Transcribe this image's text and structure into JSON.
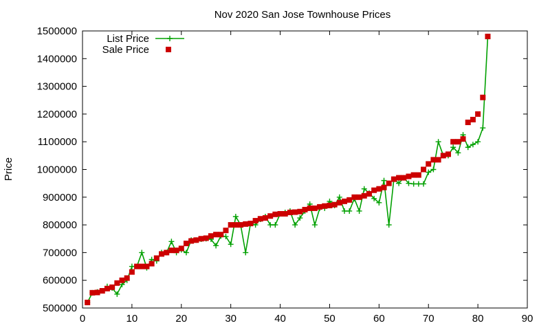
{
  "chart_data": {
    "type": "line",
    "title": "Nov 2020 San Jose Townhouse Prices",
    "xlabel": "",
    "ylabel": "Price",
    "xlim": [
      0,
      90
    ],
    "ylim": [
      500000,
      1500000
    ],
    "x_ticks": [
      "0",
      "10",
      "20",
      "30",
      "40",
      "50",
      "60",
      "70",
      "80",
      "90"
    ],
    "y_ticks": [
      "500000",
      "600000",
      "700000",
      "800000",
      "900000",
      "1000000",
      "1100000",
      "1200000",
      "1300000",
      "1400000",
      "1500000"
    ],
    "grid": false,
    "legend_position": "top-left",
    "series": [
      {
        "name": "List Price",
        "color": "#00a000",
        "marker": "plus",
        "x": [
          1,
          2,
          3,
          4,
          5,
          6,
          7,
          8,
          9,
          10,
          11,
          12,
          13,
          14,
          15,
          16,
          17,
          18,
          19,
          20,
          21,
          22,
          23,
          24,
          25,
          26,
          27,
          28,
          29,
          30,
          31,
          32,
          33,
          34,
          35,
          36,
          37,
          38,
          39,
          40,
          41,
          42,
          43,
          44,
          45,
          46,
          47,
          48,
          49,
          50,
          51,
          52,
          53,
          54,
          55,
          56,
          57,
          58,
          59,
          60,
          61,
          62,
          63,
          64,
          65,
          66,
          67,
          68,
          69,
          70,
          71,
          72,
          73,
          74,
          75,
          76,
          77,
          78,
          79,
          80,
          81,
          82
        ],
        "y": [
          520000,
          555000,
          558000,
          562000,
          578000,
          572000,
          550000,
          585000,
          600000,
          650000,
          650000,
          700000,
          645000,
          675000,
          670000,
          700000,
          700000,
          740000,
          700000,
          710000,
          700000,
          745000,
          745000,
          748000,
          750000,
          748000,
          725000,
          760000,
          758000,
          730000,
          830000,
          800000,
          700000,
          805000,
          800000,
          820000,
          830000,
          800000,
          800000,
          840000,
          845000,
          850000,
          800000,
          825000,
          850000,
          875000,
          800000,
          860000,
          860000,
          885000,
          870000,
          900000,
          850000,
          850000,
          895000,
          850000,
          930000,
          915000,
          895000,
          880000,
          960000,
          800000,
          965000,
          950000,
          970000,
          950000,
          948000,
          948000,
          948000,
          990000,
          1000000,
          1100000,
          1050000,
          1050000,
          1080000,
          1060000,
          1125000,
          1080000,
          1090000,
          1100000,
          1150000,
          1480000
        ]
      },
      {
        "name": "Sale Price",
        "color": "#cc0000",
        "marker": "square",
        "x": [
          1,
          2,
          3,
          4,
          5,
          6,
          7,
          8,
          9,
          10,
          11,
          12,
          13,
          14,
          15,
          16,
          17,
          18,
          19,
          20,
          21,
          22,
          23,
          24,
          25,
          26,
          27,
          28,
          29,
          30,
          31,
          32,
          33,
          34,
          35,
          36,
          37,
          38,
          39,
          40,
          41,
          42,
          43,
          44,
          45,
          46,
          47,
          48,
          49,
          50,
          51,
          52,
          53,
          54,
          55,
          56,
          57,
          58,
          59,
          60,
          61,
          62,
          63,
          64,
          65,
          66,
          67,
          68,
          69,
          70,
          71,
          72,
          73,
          74,
          75,
          76,
          77,
          78,
          79,
          80,
          81,
          82
        ],
        "y": [
          520000,
          555000,
          556000,
          562000,
          570000,
          575000,
          590000,
          600000,
          608000,
          630000,
          650000,
          650000,
          650000,
          660000,
          680000,
          695000,
          700000,
          708000,
          708000,
          715000,
          733000,
          742000,
          745000,
          750000,
          752000,
          760000,
          765000,
          765000,
          780000,
          800000,
          800000,
          800000,
          803000,
          805000,
          815000,
          822000,
          825000,
          832000,
          838000,
          840000,
          840000,
          845000,
          846000,
          848000,
          855000,
          860000,
          860000,
          865000,
          868000,
          870000,
          873000,
          880000,
          885000,
          890000,
          900000,
          900000,
          905000,
          912000,
          925000,
          930000,
          935000,
          950000,
          965000,
          970000,
          970000,
          975000,
          980000,
          980000,
          1000000,
          1020000,
          1035000,
          1035000,
          1050000,
          1055000,
          1100000,
          1100000,
          1110000,
          1170000,
          1180000,
          1200000,
          1260000,
          1480000
        ]
      }
    ]
  }
}
